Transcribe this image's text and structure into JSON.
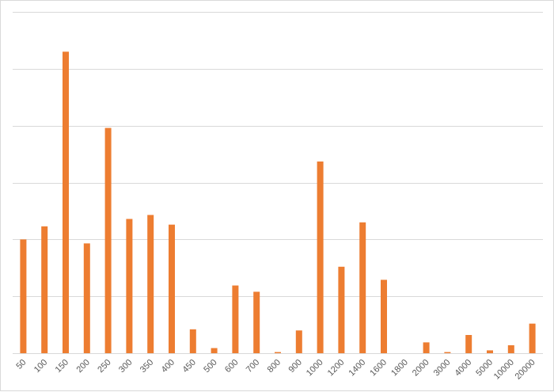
{
  "chart_data": {
    "type": "bar",
    "title": "",
    "xlabel": "",
    "ylabel": "",
    "categories": [
      "50",
      "100",
      "150",
      "200",
      "250",
      "300",
      "350",
      "400",
      "450",
      "500",
      "600",
      "700",
      "800",
      "900",
      "1000",
      "1200",
      "1400",
      "1600",
      "1800",
      "2000",
      "3000",
      "4000",
      "5000",
      "10000",
      "20000"
    ],
    "values": [
      100,
      111.5,
      265,
      96.5,
      198,
      118,
      121.5,
      113,
      21,
      4.5,
      59.5,
      54,
      1,
      20,
      168.5,
      76,
      115,
      64.5,
      0,
      9.5,
      1,
      16,
      2.5,
      7,
      26
    ],
    "ylim": [
      0,
      300
    ],
    "yticks": [
      0,
      50,
      100,
      150,
      200,
      250,
      300
    ],
    "y_tick_labels_shown": false,
    "grid": true,
    "legend": "none",
    "bar_color": "#ed7d31",
    "grid_color": "#d9d9d9"
  }
}
